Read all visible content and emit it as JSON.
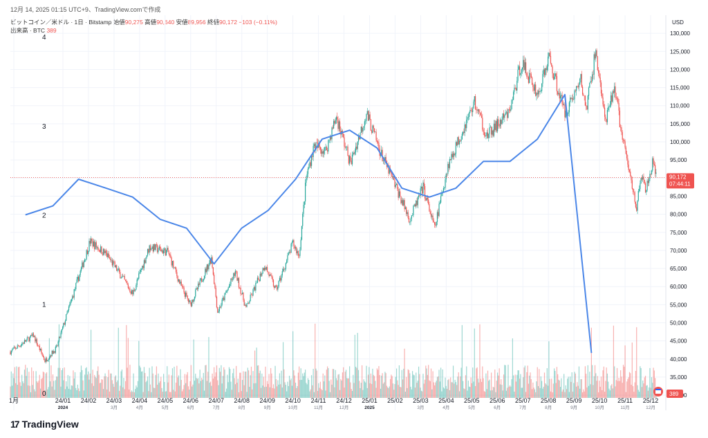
{
  "header": {
    "snapshot": "12月 14, 2025 01:15 UTC+9、TradingView.comで作成",
    "symbol": "ビットコイン／米ドル · 1日 · Bitstamp",
    "open_label": "始値",
    "open_value": "90,275",
    "high_label": "高値",
    "high_value": "90,640",
    "low_label": "安値",
    "low_value": "89,956",
    "close_label": "終値",
    "close_value": "90,172",
    "change": "−103 (−0.11%)",
    "volume_label": "出来高 · BTC",
    "volume_value": "389"
  },
  "price_axis": {
    "currency": "USD",
    "last_price": "90,172",
    "countdown": "07:44:11",
    "volume_badge": "389"
  },
  "brand": {
    "name": "TradingView"
  },
  "colors": {
    "up": "#26a69a",
    "down": "#ef5350",
    "overlay": "#4a86e8",
    "grid": "#f0f3fa"
  },
  "chart_data": {
    "type": "candlestick",
    "price_range": [
      26000,
      135000
    ],
    "price_ticks": [
      "30,000",
      "35,000",
      "40,000",
      "45,000",
      "50,000",
      "55,000",
      "60,000",
      "65,000",
      "70,000",
      "75,000",
      "80,000",
      "85,000",
      "90,000",
      "95,000",
      "100,000",
      "105,000",
      "110,000",
      "115,000",
      "120,000",
      "125,000",
      "130,000"
    ],
    "overlay_axis": {
      "range": [
        0,
        4
      ],
      "ticks": [
        "0",
        "1",
        "2",
        "3",
        "4"
      ]
    },
    "x_ticks": [
      {
        "label": "1月",
        "sub": ""
      },
      {
        "label": "24/01",
        "sub": "2024"
      },
      {
        "label": "24/02",
        "sub": ""
      },
      {
        "label": "24/03",
        "sub": "3月"
      },
      {
        "label": "24/04",
        "sub": "4月"
      },
      {
        "label": "24/05",
        "sub": "5月"
      },
      {
        "label": "24/06",
        "sub": "6月"
      },
      {
        "label": "24/07",
        "sub": "7月"
      },
      {
        "label": "24/08",
        "sub": "8月"
      },
      {
        "label": "24/09",
        "sub": "9月"
      },
      {
        "label": "24/10",
        "sub": "10月"
      },
      {
        "label": "24/11",
        "sub": "11月"
      },
      {
        "label": "24/12",
        "sub": "12月"
      },
      {
        "label": "25/01",
        "sub": "2025"
      },
      {
        "label": "25/02",
        "sub": ""
      },
      {
        "label": "25/03",
        "sub": "3月"
      },
      {
        "label": "25/04",
        "sub": "4月"
      },
      {
        "label": "25/05",
        "sub": "5月"
      },
      {
        "label": "25/06",
        "sub": "6月"
      },
      {
        "label": "25/07",
        "sub": "7月"
      },
      {
        "label": "25/08",
        "sub": "8月"
      },
      {
        "label": "25/09",
        "sub": "9月"
      },
      {
        "label": "25/10",
        "sub": "10月"
      },
      {
        "label": "25/11",
        "sub": "11月"
      },
      {
        "label": "25/12",
        "sub": "12月"
      }
    ],
    "price_path": [
      [
        "2023-12-15",
        42000
      ],
      [
        "2024-01-10",
        46500
      ],
      [
        "2024-01-23",
        39500
      ],
      [
        "2024-02-05",
        43000
      ],
      [
        "2024-02-28",
        61000
      ],
      [
        "2024-03-14",
        72500
      ],
      [
        "2024-04-01",
        69000
      ],
      [
        "2024-04-18",
        63000
      ],
      [
        "2024-05-01",
        58000
      ],
      [
        "2024-05-20",
        71000
      ],
      [
        "2024-06-10",
        69500
      ],
      [
        "2024-06-24",
        60500
      ],
      [
        "2024-07-05",
        55000
      ],
      [
        "2024-07-29",
        68000
      ],
      [
        "2024-08-05",
        53000
      ],
      [
        "2024-08-25",
        64000
      ],
      [
        "2024-09-06",
        54000
      ],
      [
        "2024-09-27",
        66000
      ],
      [
        "2024-10-10",
        59000
      ],
      [
        "2024-10-29",
        72000
      ],
      [
        "2024-11-05",
        68500
      ],
      [
        "2024-11-13",
        90000
      ],
      [
        "2024-11-22",
        99000
      ],
      [
        "2024-12-05",
        97500
      ],
      [
        "2024-12-17",
        107000
      ],
      [
        "2025-01-02",
        94000
      ],
      [
        "2025-01-20",
        108000
      ],
      [
        "2025-02-05",
        97000
      ],
      [
        "2025-02-25",
        86000
      ],
      [
        "2025-03-10",
        78500
      ],
      [
        "2025-03-25",
        87500
      ],
      [
        "2025-04-07",
        76000
      ],
      [
        "2025-04-22",
        93500
      ],
      [
        "2025-05-22",
        111000
      ],
      [
        "2025-06-05",
        101500
      ],
      [
        "2025-06-30",
        108000
      ],
      [
        "2025-07-14",
        122000
      ],
      [
        "2025-08-02",
        113000
      ],
      [
        "2025-08-14",
        123500
      ],
      [
        "2025-09-01",
        108000
      ],
      [
        "2025-09-19",
        117000
      ],
      [
        "2025-09-25",
        109000
      ],
      [
        "2025-10-06",
        125000
      ],
      [
        "2025-10-17",
        105000
      ],
      [
        "2025-10-27",
        115500
      ],
      [
        "2025-11-05",
        101000
      ],
      [
        "2025-11-21",
        82000
      ],
      [
        "2025-11-27",
        91000
      ],
      [
        "2025-12-01",
        86000
      ],
      [
        "2025-12-09",
        94000
      ],
      [
        "2025-12-13",
        90172
      ]
    ],
    "series": [
      {
        "name": "",
        "type": "line",
        "axis": "left",
        "points": [
          [
            "2024-01-01",
            2.0
          ],
          [
            "2024-02-01",
            2.1
          ],
          [
            "2024-03-01",
            2.4
          ],
          [
            "2024-04-01",
            2.3
          ],
          [
            "2024-05-01",
            2.2
          ],
          [
            "2024-06-01",
            1.95
          ],
          [
            "2024-07-01",
            1.85
          ],
          [
            "2024-08-01",
            1.45
          ],
          [
            "2024-09-01",
            1.85
          ],
          [
            "2024-10-01",
            2.05
          ],
          [
            "2024-11-01",
            2.4
          ],
          [
            "2024-12-01",
            2.85
          ],
          [
            "2025-01-01",
            2.95
          ],
          [
            "2025-02-01",
            2.75
          ],
          [
            "2025-03-01",
            2.3
          ],
          [
            "2025-04-01",
            2.2
          ],
          [
            "2025-05-01",
            2.3
          ],
          [
            "2025-06-01",
            2.6
          ],
          [
            "2025-07-01",
            2.6
          ],
          [
            "2025-08-01",
            2.85
          ],
          [
            "2025-09-01",
            3.35
          ],
          [
            "2025-10-01",
            0.45
          ]
        ]
      }
    ]
  }
}
